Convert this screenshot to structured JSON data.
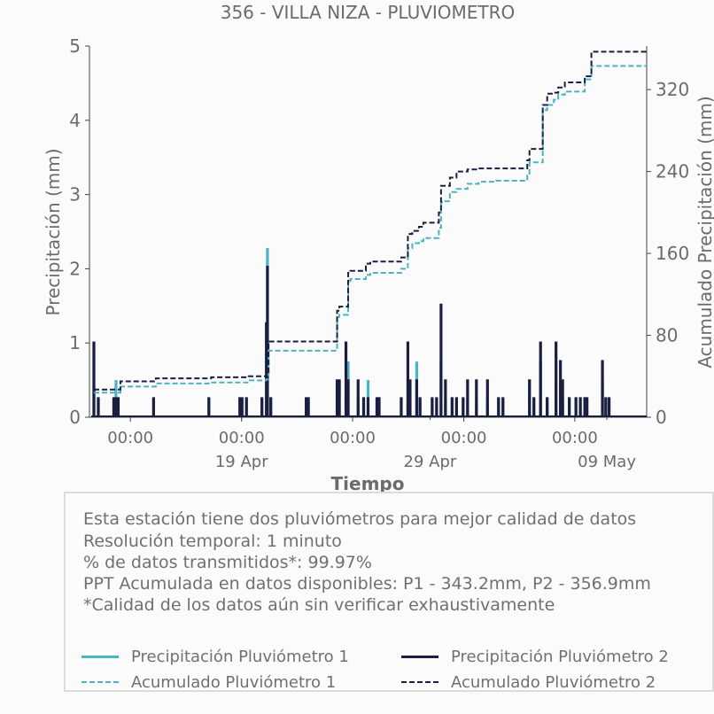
{
  "chart_data": {
    "type": "bar",
    "title": "356 - VILLA NIZA - PLUVIOMETRO",
    "xlabel": "Tiempo",
    "ylabel": "Precipitación (mm)",
    "y2label": "Acumulado Precipitación (mm)",
    "ylim": [
      0,
      5
    ],
    "y2lim": [
      0,
      362.5
    ],
    "xlim": [
      -0.1,
      25.1
    ],
    "x_unit": "days since 2024-04-15 00:00",
    "yticks": [
      0,
      1,
      2,
      3,
      4,
      5
    ],
    "y2ticks": [
      0,
      80,
      160,
      240,
      320
    ],
    "xticks": [
      {
        "x": 1.75,
        "label": "00:00"
      },
      {
        "x": 6.78,
        "label": "00:00"
      },
      {
        "x": 11.8,
        "label": "00:00"
      },
      {
        "x": 16.83,
        "label": "00:00"
      },
      {
        "x": 21.85,
        "label": "00:00"
      }
    ],
    "xticks_minor": [
      {
        "x": 6.78,
        "label": "19 Apr"
      },
      {
        "x": 15.3,
        "label": "29 Apr"
      },
      {
        "x": 23.3,
        "label": "09 May"
      }
    ],
    "grid": false,
    "legend_position": "bottom",
    "series": [
      {
        "name": "Precipitación Pluviómetro 1",
        "kind": "bar",
        "axis": "left",
        "color": "#4cb3c4",
        "x": [
          0.1,
          0.3,
          1.0,
          1.1,
          1.2,
          2.8,
          5.3,
          6.7,
          6.8,
          7.0,
          7.7,
          7.95,
          8.1,
          9.7,
          9.8,
          11.1,
          11.2,
          11.5,
          11.6,
          12.05,
          12.3,
          12.5,
          12.9,
          13.0,
          14.0,
          14.3,
          14.4,
          14.7,
          14.85,
          15.4,
          15.6,
          15.8,
          16.0,
          16.3,
          16.5,
          16.8,
          17.0,
          17.4,
          17.9,
          18.4,
          18.6,
          19.8,
          20.0,
          20.3,
          20.6,
          21.0,
          21.2,
          21.3,
          21.6,
          21.9,
          22.1,
          22.3,
          22.4,
          23.1,
          23.25,
          23.4
        ],
        "y": [
          1.0,
          0.25,
          0.25,
          0.5,
          0.25,
          0.25,
          0.25,
          0.25,
          0.25,
          0.25,
          0.25,
          2.28,
          0.25,
          0.25,
          0.25,
          0.5,
          0.5,
          0.25,
          0.75,
          0.25,
          0.25,
          0.5,
          0.25,
          0.25,
          0.25,
          0.25,
          0.25,
          0.75,
          0.25,
          0.25,
          0.25,
          0.75,
          0.25,
          0.25,
          0.25,
          0.25,
          0.25,
          0.25,
          0.25,
          0.25,
          0.25,
          0.5,
          0.25,
          0.75,
          0.25,
          0.75,
          0.5,
          0.25,
          0.25,
          0.25,
          0.25,
          0.25,
          0.25,
          0.5,
          0.25,
          0.25
        ]
      },
      {
        "name": "Precipitación Pluviómetro 2",
        "kind": "bar",
        "axis": "left",
        "color": "#1c1e40",
        "x": [
          0.1,
          0.3,
          1.0,
          1.1,
          1.2,
          2.8,
          5.3,
          6.7,
          6.8,
          7.0,
          7.7,
          7.9,
          7.95,
          8.1,
          9.7,
          9.8,
          11.1,
          11.2,
          11.5,
          11.6,
          12.05,
          12.3,
          12.5,
          12.9,
          13.0,
          14.0,
          14.3,
          14.4,
          14.7,
          14.85,
          15.4,
          15.6,
          15.8,
          16.0,
          16.3,
          16.5,
          16.8,
          17.0,
          17.4,
          17.9,
          18.4,
          18.6,
          19.8,
          20.0,
          20.3,
          20.6,
          21.0,
          21.2,
          21.3,
          21.6,
          21.9,
          22.1,
          22.3,
          22.4,
          23.1,
          23.25,
          23.4
        ],
        "y": [
          1.02,
          0.27,
          0.27,
          0.27,
          0.27,
          0.27,
          0.27,
          0.27,
          0.27,
          0.27,
          0.27,
          1.28,
          2.04,
          0.27,
          0.27,
          0.27,
          0.51,
          0.51,
          1.02,
          0.51,
          0.51,
          0.27,
          0.27,
          0.27,
          0.27,
          0.27,
          1.02,
          0.51,
          0.51,
          0.27,
          0.27,
          0.27,
          1.53,
          0.51,
          0.27,
          0.27,
          0.27,
          0.51,
          0.51,
          0.51,
          0.27,
          0.27,
          0.51,
          0.27,
          1.02,
          0.27,
          1.02,
          0.77,
          0.51,
          0.27,
          0.27,
          0.27,
          0.27,
          0.27,
          0.77,
          0.27,
          0.27
        ]
      },
      {
        "name": "Acumulado Pluviómetro 1",
        "kind": "step",
        "axis": "right",
        "color": "#4cb3c4",
        "x": [
          0.1,
          1.1,
          1.3,
          2.7,
          2.9,
          5.2,
          5.4,
          6.6,
          7.1,
          7.9,
          8.0,
          11.0,
          11.1,
          11.2,
          11.5,
          11.6,
          11.7,
          12.2,
          12.4,
          12.6,
          13.0,
          14.0,
          14.3,
          14.5,
          14.6,
          14.8,
          15.0,
          15.5,
          15.7,
          15.8,
          16.0,
          16.2,
          16.5,
          17.0,
          17.4,
          17.5,
          18.0,
          18.3,
          19.7,
          19.8,
          20.3,
          20.4,
          20.6,
          20.9,
          21.1,
          21.4,
          22.1,
          22.3,
          22.6
        ],
        "y": [
          24,
          24,
          30,
          30,
          33,
          33,
          34,
          34,
          36,
          37,
          65,
          65,
          98,
          100,
          100,
          133,
          135,
          135,
          139,
          141,
          141,
          145,
          165,
          170,
          170,
          172,
          175,
          175,
          185,
          210,
          211,
          220,
          223,
          228,
          228,
          230,
          230,
          231,
          236,
          249,
          249,
          300,
          305,
          310,
          315,
          318,
          318,
          330,
          343
        ]
      },
      {
        "name": "Acumulado Pluviómetro 2",
        "kind": "step",
        "axis": "right",
        "color": "#1c1e40",
        "x": [
          0.1,
          1.1,
          1.3,
          2.7,
          2.9,
          5.2,
          5.4,
          6.6,
          7.1,
          7.9,
          8.0,
          11.0,
          11.1,
          11.2,
          11.5,
          11.6,
          11.7,
          12.2,
          12.4,
          12.6,
          13.0,
          14.0,
          14.3,
          14.5,
          14.6,
          14.8,
          15.0,
          15.5,
          15.7,
          15.8,
          16.0,
          16.2,
          16.5,
          17.0,
          17.4,
          17.5,
          18.0,
          18.3,
          19.7,
          19.8,
          20.3,
          20.4,
          20.6,
          20.9,
          21.1,
          21.4,
          22.1,
          22.3,
          22.6
        ],
        "y": [
          27,
          27,
          35,
          35,
          38,
          38,
          39,
          39,
          40,
          42,
          74,
          74,
          104,
          108,
          108,
          141,
          143,
          143,
          150,
          152,
          152,
          156,
          179,
          182,
          182,
          186,
          190,
          190,
          200,
          226,
          226,
          234,
          240,
          242,
          242,
          243,
          243,
          243,
          251,
          262,
          262,
          305,
          316,
          317,
          322,
          327,
          327,
          333,
          357
        ]
      }
    ]
  },
  "info_box": {
    "lines": [
      "Esta estación tiene dos pluviómetros para mejor calidad de datos",
      "Resolución temporal: 1 minuto",
      "% de datos transmitidos*: 99.97%",
      "PPT Acumulada en datos disponibles: P1 - 343.2mm, P2 - 356.9mm",
      "*Calidad de los datos aún sin verificar exhaustivamente"
    ]
  },
  "legend": {
    "items": [
      {
        "label": "Precipitación Pluviómetro 1",
        "color": "#4cb3c4",
        "style": "solid"
      },
      {
        "label": "Precipitación Pluviómetro 2",
        "color": "#1c1e40",
        "style": "solid"
      },
      {
        "label": "Acumulado Pluviómetro 1",
        "color": "#4cb3c4",
        "style": "dashed"
      },
      {
        "label": "Acumulado Pluviómetro 2",
        "color": "#1c1e40",
        "style": "dashed"
      }
    ]
  }
}
